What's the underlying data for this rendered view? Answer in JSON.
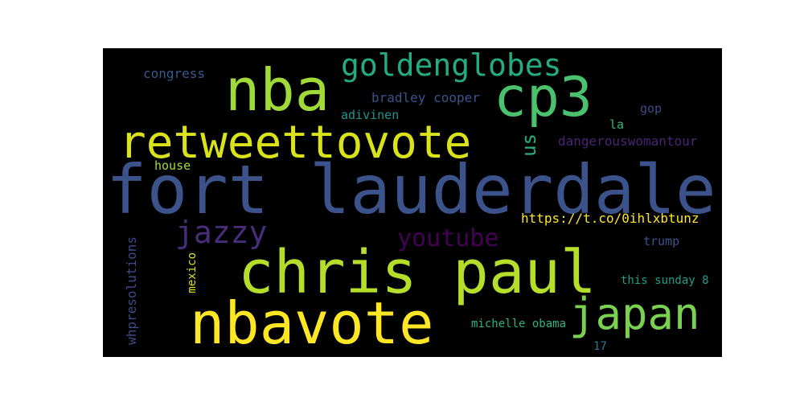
{
  "words": [
    {
      "text": "fort lauderdale",
      "color": "#3b528b"
    },
    {
      "text": "chris paul",
      "color": "#b5de2b"
    },
    {
      "text": "nbavote",
      "color": "#fde725"
    },
    {
      "text": "nba",
      "color": "#a0da39"
    },
    {
      "text": "cp3",
      "color": "#4ac16d"
    },
    {
      "text": "retweettovote",
      "color": "#dae319"
    },
    {
      "text": "goldenglobes",
      "color": "#25ab82"
    },
    {
      "text": "japan",
      "color": "#7ad151"
    },
    {
      "text": "jazzy",
      "color": "#472d7b"
    },
    {
      "text": "youtube",
      "color": "#440154"
    },
    {
      "text": "us",
      "color": "#27ad81"
    },
    {
      "text": "https://t.co/0ihlxbtunz",
      "color": "#fde725"
    },
    {
      "text": "whpresolutions",
      "color": "#3e4a89"
    },
    {
      "text": "mexico",
      "color": "#dde318"
    },
    {
      "text": "bradley cooper",
      "color": "#3b528b"
    },
    {
      "text": "adivinen",
      "color": "#1f958b"
    },
    {
      "text": "dangerouswomantour",
      "color": "#482475"
    },
    {
      "text": "congress",
      "color": "#38598c"
    },
    {
      "text": "house",
      "color": "#a5db36"
    },
    {
      "text": "gop",
      "color": "#3e4a89"
    },
    {
      "text": "la",
      "color": "#35b779"
    },
    {
      "text": "trump",
      "color": "#3b528b"
    },
    {
      "text": "this sunday 8",
      "color": "#1f9e89"
    },
    {
      "text": "michelle obama",
      "color": "#2db27d"
    },
    {
      "text": "17",
      "color": "#2a788e"
    }
  ]
}
